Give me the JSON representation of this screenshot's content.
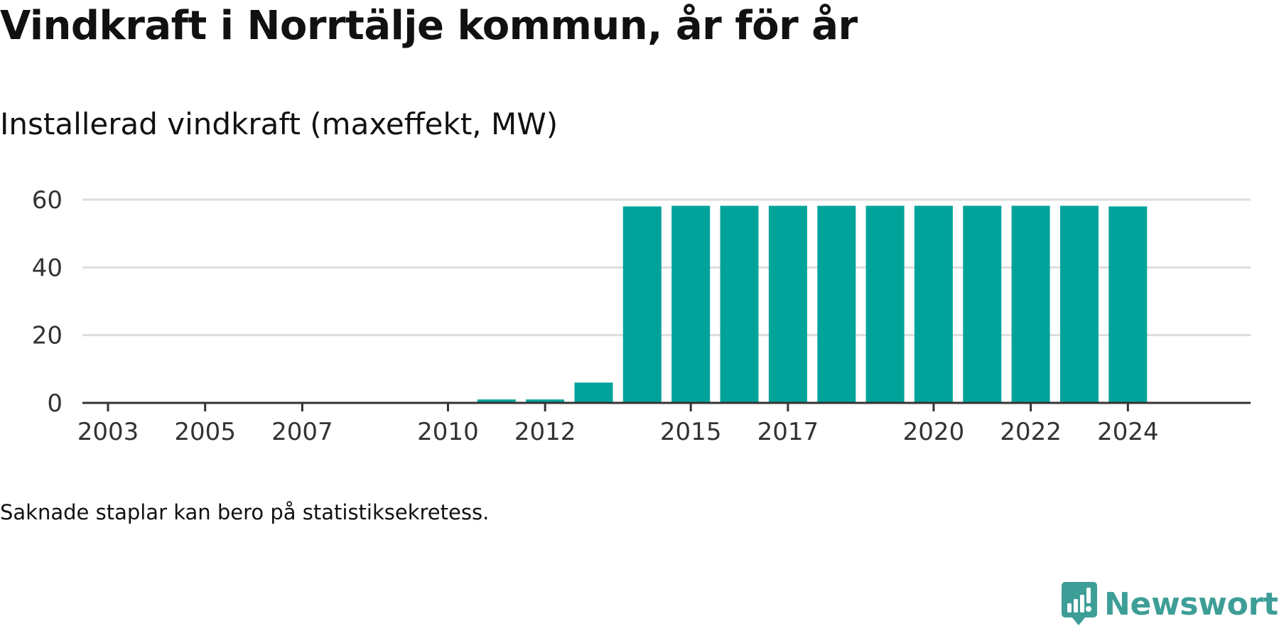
{
  "header": {
    "title": "Vindkraft i Norrtälje kommun, år för år",
    "subtitle": "Installerad vindkraft (maxeffekt, MW)"
  },
  "footer": {
    "note": "Saknade staplar kan bero på statistiksekretess.",
    "brand": "Newsworthy"
  },
  "colors": {
    "bar": "#00a39a",
    "gridline": "#dddddd",
    "axis": "#333333",
    "brand": "#3d9e97"
  },
  "icons": {
    "brand_logo": "bar-chart-speech-bubble-icon"
  },
  "chart_data": {
    "type": "bar",
    "title": "Vindkraft i Norrtälje kommun, år för år",
    "subtitle": "Installerad vindkraft (maxeffekt, MW)",
    "xlabel": "",
    "ylabel": "",
    "ylim": [
      0,
      60
    ],
    "yticks": [
      0,
      20,
      40,
      60
    ],
    "xtick_labels": [
      "2003",
      "2005",
      "2007",
      "2010",
      "2012",
      "2015",
      "2017",
      "2020",
      "2022",
      "2024"
    ],
    "grid": true,
    "legend": "none",
    "categories": [
      "2003",
      "2004",
      "2005",
      "2006",
      "2007",
      "2008",
      "2009",
      "2010",
      "2011",
      "2012",
      "2013",
      "2014",
      "2015",
      "2016",
      "2017",
      "2018",
      "2019",
      "2020",
      "2021",
      "2022",
      "2023",
      "2024"
    ],
    "values": [
      0,
      0,
      0,
      0,
      0,
      null,
      null,
      0,
      1,
      1,
      6,
      58,
      58.2,
      58.2,
      58.2,
      58.2,
      58.2,
      58.2,
      58.2,
      58.2,
      58.2,
      58
    ]
  }
}
